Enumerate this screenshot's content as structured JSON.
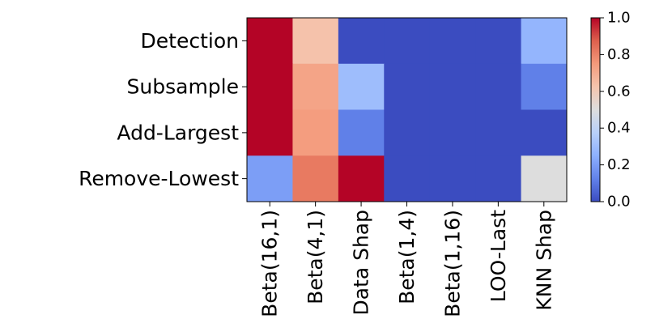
{
  "chart_data": {
    "type": "heatmap",
    "rows": [
      "Detection",
      "Subsample",
      "Add-Largest",
      "Remove-Lowest"
    ],
    "columns": [
      "Beta(16,1)",
      "Beta(4,1)",
      "Data Shap",
      "Beta(1,4)",
      "Beta(1,16)",
      "LOO-Last",
      "KNN Shap"
    ],
    "values": [
      [
        1.0,
        0.63,
        0.0,
        0.0,
        0.0,
        0.0,
        0.27
      ],
      [
        1.0,
        0.72,
        0.3,
        0.0,
        0.0,
        0.0,
        0.12
      ],
      [
        1.0,
        0.74,
        0.12,
        0.0,
        0.0,
        0.0,
        0.0
      ],
      [
        0.2,
        0.82,
        1.0,
        0.0,
        0.0,
        0.0,
        0.5
      ]
    ],
    "colormap": "coolwarm",
    "vmin": 0.0,
    "vmax": 1.0,
    "colorbar_ticks": [
      "0.0",
      "0.2",
      "0.4",
      "0.6",
      "0.8",
      "1.0"
    ],
    "colorbar_tick_values": [
      0.0,
      0.2,
      0.4,
      0.6,
      0.8,
      1.0
    ],
    "grid": false,
    "legend": "colorbar-right"
  }
}
